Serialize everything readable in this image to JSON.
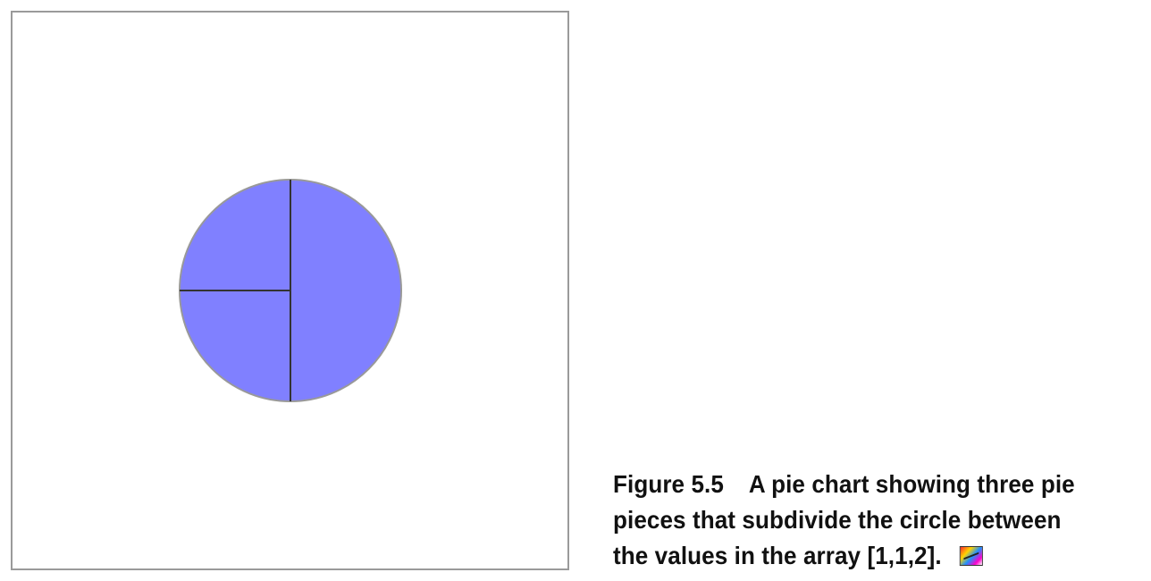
{
  "chart_data": {
    "type": "pie",
    "values": [
      1,
      1,
      2
    ],
    "slice_color": "#8080ff",
    "divider_color": "#333333",
    "outline_color": "#999999",
    "title": "",
    "legend": "none"
  },
  "caption": {
    "figure_label": "Figure 5.5",
    "line1": "A pie chart showing three pie",
    "line2": "pieces that subdivide the circle between",
    "line3": "the values in the array [1,1,2].",
    "icon": "color-image-icon"
  }
}
